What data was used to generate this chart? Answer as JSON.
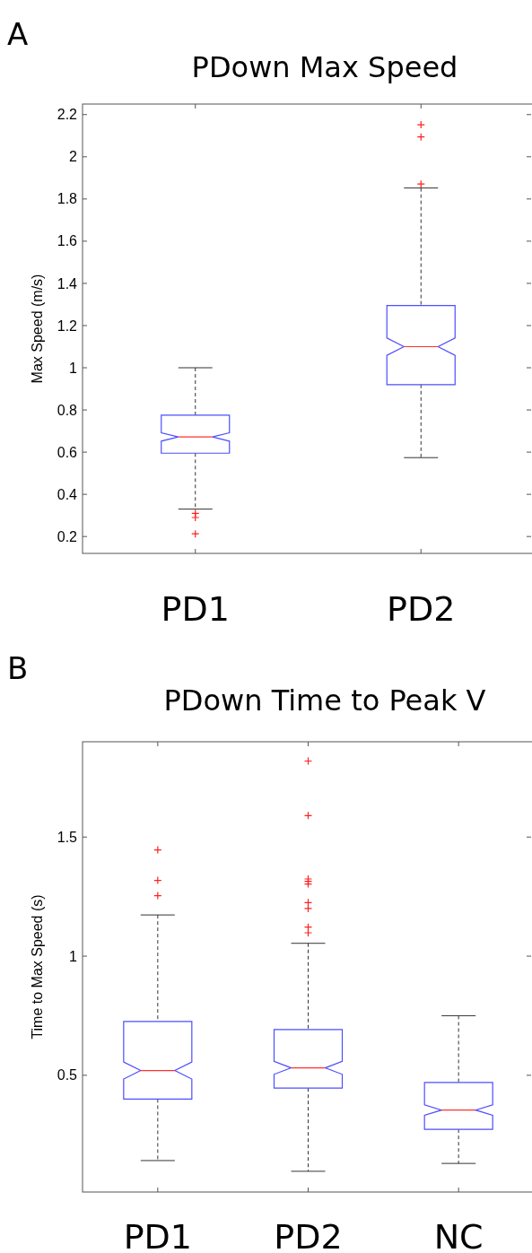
{
  "chart_data": [
    {
      "type": "box",
      "title": "PDown Max Speed",
      "ylabel": "Max Speed (m/s)",
      "annotations": [
        "A"
      ],
      "categories": [
        "PD1",
        "PD2"
      ],
      "ylim": [
        0.12,
        2.25
      ],
      "yticks": [
        0.2,
        0.4,
        0.6,
        0.8,
        1,
        1.2,
        1.4,
        1.6,
        1.8,
        2,
        2.2
      ],
      "color": "#4d4dff",
      "boxes": [
        {
          "low": 0.33,
          "q1": 0.595,
          "median": 0.672,
          "q3": 0.775,
          "high": 1.0,
          "outliers": [
            0.31,
            0.29,
            0.213
          ]
        },
        {
          "low": 0.574,
          "q1": 0.92,
          "median": 1.1,
          "q3": 1.295,
          "high": 1.852,
          "outliers": [
            2.152,
            2.094,
            1.871
          ]
        }
      ]
    },
    {
      "type": "box",
      "title": "PDown Time to Peak V",
      "ylabel": "Time to Max Speed (s)",
      "annotations": [
        "B"
      ],
      "categories": [
        "PD1",
        "PD2",
        "NC"
      ],
      "ylim": [
        0.01,
        1.9
      ],
      "yticks": [
        0.5,
        1,
        1.5
      ],
      "color": "#4d4dff",
      "boxes": [
        {
          "low": 0.142,
          "q1": 0.4,
          "median": 0.52,
          "q3": 0.726,
          "high": 1.173,
          "outliers": [
            1.446,
            1.318,
            1.254
          ]
        },
        {
          "low": 0.097,
          "q1": 0.446,
          "median": 0.531,
          "q3": 0.692,
          "high": 1.054,
          "outliers": [
            1.819,
            1.59,
            1.324,
            1.314,
            1.303,
            1.225,
            1.2,
            1.122,
            1.098
          ]
        },
        {
          "low": 0.13,
          "q1": 0.273,
          "median": 0.354,
          "q3": 0.47,
          "high": 0.75
        }
      ]
    }
  ]
}
